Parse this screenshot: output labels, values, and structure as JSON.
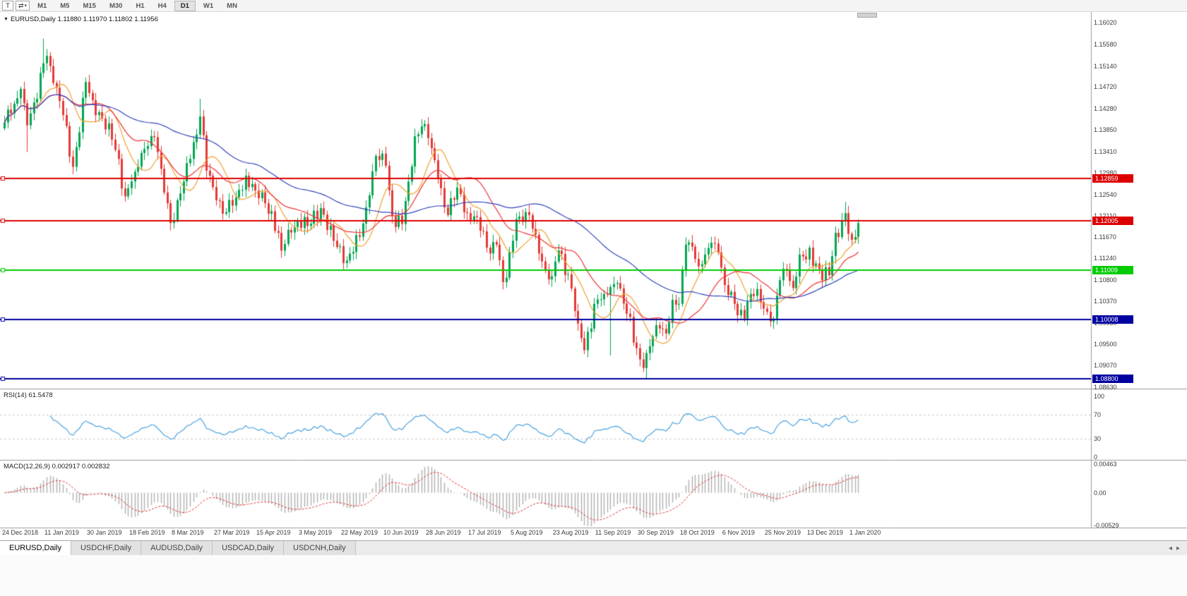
{
  "toolbar": {
    "t_button": "T",
    "swap_icon": "⇄",
    "caret_icon": "▾",
    "timeframes": [
      "M1",
      "M5",
      "M15",
      "M30",
      "H1",
      "H4",
      "D1",
      "W1",
      "MN"
    ],
    "active_timeframe": "D1"
  },
  "chart": {
    "title_text": "EURUSD,Daily  1.11880 1.11970 1.11802 1.11956",
    "collapse_icon": "▼"
  },
  "tabbar": {
    "tabs": [
      "EURUSD,Daily",
      "USDCHF,Daily",
      "AUDUSD,Daily",
      "USDCAD,Daily",
      "USDCNH,Daily"
    ],
    "scroll_left_icon": "◂",
    "scroll_right_icon": "▸"
  },
  "chart_data": {
    "type": "candlestick",
    "symbol": "EURUSD",
    "timeframe": "Daily",
    "last_ohlc": {
      "open": "1.11880",
      "high": "1.11970",
      "low": "1.11802",
      "close": "1.11956"
    },
    "price_axis": {
      "max": 1.1624,
      "min": 1.086,
      "ticks": [
        "1.16020",
        "1.15580",
        "1.15140",
        "1.14720",
        "1.14280",
        "1.13850",
        "1.13410",
        "1.12980",
        "1.12540",
        "1.12110",
        "1.11670",
        "1.11240",
        "1.10800",
        "1.10370",
        "1.09930",
        "1.09500",
        "1.09070",
        "1.08630"
      ]
    },
    "hlines": [
      {
        "price": 1.12859,
        "label": "1.12859",
        "color": "#dd0000"
      },
      {
        "price": 1.12005,
        "label": "1.12005",
        "color": "#dd0000"
      },
      {
        "price": 1.11009,
        "label": "1.11009",
        "color": "#00cc00"
      },
      {
        "price": 1.10008,
        "label": "1.10008",
        "color": "#0000a0"
      },
      {
        "price": 1.088,
        "label": "1.08800",
        "color": "#0000a0"
      }
    ],
    "x_labels": [
      "24 Dec 2018",
      "11 Jan 2019",
      "30 Jan 2019",
      "18 Feb 2019",
      "8 Mar 2019",
      "27 Mar 2019",
      "15 Apr 2019",
      "3 May 2019",
      "22 May 2019",
      "10 Jun 2019",
      "28 Jun 2019",
      "17 Jul 2019",
      "5 Aug 2019",
      "23 Aug 2019",
      "11 Sep 2019",
      "30 Sep 2019",
      "18 Oct 2019",
      "6 Nov 2019",
      "25 Nov 2019",
      "13 Dec 2019",
      "1 Jan 2020"
    ],
    "bars_per_label": 13,
    "bar_count": 263,
    "close_anchors": [
      [
        0,
        1.14
      ],
      [
        3,
        1.1438
      ],
      [
        5,
        1.1468
      ],
      [
        7,
        1.1394
      ],
      [
        10,
        1.1448
      ],
      [
        12,
        1.152
      ],
      [
        13,
        1.1535
      ],
      [
        15,
        1.148
      ],
      [
        18,
        1.1415
      ],
      [
        21,
        1.131
      ],
      [
        23,
        1.138
      ],
      [
        25,
        1.1482
      ],
      [
        27,
        1.1445
      ],
      [
        30,
        1.1408
      ],
      [
        33,
        1.1365
      ],
      [
        35,
        1.1326
      ],
      [
        37,
        1.125
      ],
      [
        40,
        1.13
      ],
      [
        42,
        1.1338
      ],
      [
        44,
        1.1352
      ],
      [
        46,
        1.137
      ],
      [
        48,
        1.1306
      ],
      [
        51,
        1.1196
      ],
      [
        53,
        1.1242
      ],
      [
        55,
        1.128
      ],
      [
        57,
        1.1326
      ],
      [
        60,
        1.1412
      ],
      [
        62,
        1.1302
      ],
      [
        65,
        1.1242
      ],
      [
        68,
        1.1218
      ],
      [
        71,
        1.1248
      ],
      [
        74,
        1.1292
      ],
      [
        77,
        1.1262
      ],
      [
        80,
        1.1236
      ],
      [
        82,
        1.122
      ],
      [
        85,
        1.114
      ],
      [
        87,
        1.1182
      ],
      [
        90,
        1.1202
      ],
      [
        93,
        1.119
      ],
      [
        97,
        1.1226
      ],
      [
        101,
        1.116
      ],
      [
        105,
        1.112
      ],
      [
        109,
        1.1168
      ],
      [
        112,
        1.1252
      ],
      [
        114,
        1.1332
      ],
      [
        117,
        1.1312
      ],
      [
        119,
        1.121
      ],
      [
        122,
        1.1194
      ],
      [
        124,
        1.128
      ],
      [
        126,
        1.1372
      ],
      [
        128,
        1.1392
      ],
      [
        130,
        1.1368
      ],
      [
        133,
        1.1286
      ],
      [
        136,
        1.1212
      ],
      [
        139,
        1.1268
      ],
      [
        142,
        1.1216
      ],
      [
        145,
        1.1208
      ],
      [
        148,
        1.1146
      ],
      [
        151,
        1.1152
      ],
      [
        153,
        1.1076
      ],
      [
        154,
        1.1085
      ],
      [
        156,
        1.116
      ],
      [
        157,
        1.1204
      ],
      [
        159,
        1.1198
      ],
      [
        161,
        1.1212
      ],
      [
        163,
        1.1172
      ],
      [
        166,
        1.11
      ],
      [
        168,
        1.1088
      ],
      [
        170,
        1.114
      ],
      [
        173,
        1.1092
      ],
      [
        176,
        1.0992
      ],
      [
        178,
        1.0938
      ],
      [
        181,
        1.1032
      ],
      [
        184,
        1.1052
      ],
      [
        186,
        1.1066
      ],
      [
        188,
        1.1074
      ],
      [
        191,
        1.1012
      ],
      [
        194,
        1.0942
      ],
      [
        196,
        1.0902
      ],
      [
        197,
        1.0932
      ],
      [
        199,
        1.0966
      ],
      [
        201,
        1.0982
      ],
      [
        203,
        1.0972
      ],
      [
        205,
        1.104
      ],
      [
        207,
        1.1032
      ],
      [
        209,
        1.1152
      ],
      [
        211,
        1.1148
      ],
      [
        213,
        1.1108
      ],
      [
        215,
        1.1132
      ],
      [
        217,
        1.1156
      ],
      [
        219,
        1.1136
      ],
      [
        221,
        1.107
      ],
      [
        224,
        1.1032
      ],
      [
        227,
        1.1002
      ],
      [
        229,
        1.1052
      ],
      [
        231,
        1.1062
      ],
      [
        234,
        1.1016
      ],
      [
        236,
        1.1002
      ],
      [
        238,
        1.108
      ],
      [
        240,
        1.1102
      ],
      [
        242,
        1.1064
      ],
      [
        244,
        1.1132
      ],
      [
        246,
        1.1122
      ],
      [
        247,
        1.1146
      ],
      [
        249,
        1.1114
      ],
      [
        251,
        1.108
      ],
      [
        253,
        1.109
      ],
      [
        255,
        1.1176
      ],
      [
        257,
        1.1202
      ],
      [
        258,
        1.1216
      ],
      [
        259,
        1.1174
      ],
      [
        260,
        1.1162
      ],
      [
        262,
        1.1196
      ]
    ],
    "special_bars": {
      "7": {
        "low": 1.134
      },
      "12": {
        "high": 1.157
      },
      "60": {
        "high": 1.1448
      },
      "186": {
        "low": 1.0927
      },
      "197": {
        "low": 1.0879
      },
      "258": {
        "high": 1.1239
      }
    },
    "moving_averages": [
      {
        "period": 10,
        "color": "#f0a030"
      },
      {
        "period": 21,
        "color": "#ee3333"
      },
      {
        "period": 55,
        "color": "#3344bb"
      }
    ],
    "candle_colors": {
      "up": "#00a651",
      "down": "#e53935"
    },
    "rsi": {
      "full_label": "RSI(14) 61.5478",
      "period": 14,
      "color": "#4aa3df",
      "ticks": [
        100,
        70,
        30,
        0
      ],
      "levels": [
        70,
        30
      ]
    },
    "macd": {
      "full_label": "MACD(12,26,9) 0.002917 0.002832",
      "fast": 12,
      "slow": 26,
      "signal_period": 9,
      "axis_max": 0.00463,
      "axis_min": -0.00529,
      "ticks": [
        "0.00463",
        "0.00",
        "-0.00529"
      ],
      "hist_color": "#b0b0b0",
      "signal_color": "#dd3333"
    }
  }
}
